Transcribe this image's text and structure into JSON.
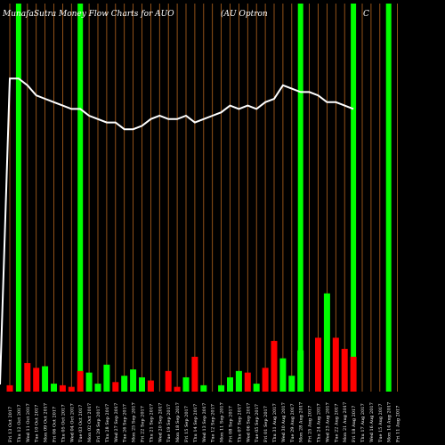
{
  "chart_data": {
    "type": "bar",
    "title": "MunafaSutra  Money Flow  Charts for AUO",
    "subtitle": "(AU Optron",
    "subtitle_tail": "C",
    "colors": {
      "background": "#000000",
      "vertical_lines": "#b5651d",
      "highlight": "#00ff00",
      "up_bar": "#00ff00",
      "down_bar": "#ff0000",
      "price_line": "#ffffff"
    },
    "dates": [
      "Fri 13 Oct 2017",
      "Thu 12 Oct 2017",
      "Wed 11 Oct 2017",
      "Tue 10 Oct 2017",
      "Mon 09 Oct 2017",
      "Fri 06 Oct 2017",
      "Thu 05 Oct 2017",
      "Wed 04 Oct 2017",
      "Tue 03 Oct 2017",
      "Mon 02 Oct 2017",
      "Fri 29 Sep 2017",
      "Thu 28 Sep 2017",
      "Wed 27 Sep 2017",
      "Tue 26 Sep 2017",
      "Mon 25 Sep 2017",
      "Fri 22 Sep 2017",
      "Thu 21 Sep 2017",
      "Wed 20 Sep 2017",
      "Tue 19 Sep 2017",
      "Mon 18 Sep 2017",
      "Fri 15 Sep 2017",
      "Thu 14 Sep 2017",
      "Wed 13 Sep 2017",
      "Tue 12 Sep 2017",
      "Mon 11 Sep 2017",
      "Fri 08 Sep 2017",
      "Thu 07 Sep 2017",
      "Wed 06 Sep 2017",
      "Tue 05 Sep 2017",
      "Fri 01 Sep 2017",
      "Thu 31 Aug 2017",
      "Wed 30 Aug 2017",
      "Tue 29 Aug 2017",
      "Mon 28 Aug 2017",
      "Fri 25 Aug 2017",
      "Thu 24 Aug 2017",
      "Wed 23 Aug 2017",
      "Tue 22 Aug 2017",
      "Mon 21 Aug 2017",
      "Fri 18 Aug 2017",
      "Thu 17 Aug 2017",
      "Wed 16 Aug 2017",
      "Tue 15 Aug 2017",
      "Mon 14 Aug 2017",
      "Fri 11 Aug 2017"
    ],
    "highlighted_dates": [
      "Thu 12 Oct 2017",
      "Tue 03 Oct 2017",
      "Mon 28 Aug 2017",
      "Fri 18 Aug 2017",
      "Mon 14 Aug 2017"
    ],
    "money_flow": [
      {
        "value": 4,
        "direction": "down"
      },
      {
        "value": 0,
        "direction": "none"
      },
      {
        "value": 18,
        "direction": "down"
      },
      {
        "value": 15,
        "direction": "down"
      },
      {
        "value": 16,
        "direction": "up"
      },
      {
        "value": 5,
        "direction": "up"
      },
      {
        "value": 4,
        "direction": "down"
      },
      {
        "value": 3,
        "direction": "down"
      },
      {
        "value": 13,
        "direction": "down"
      },
      {
        "value": 12,
        "direction": "up"
      },
      {
        "value": 5,
        "direction": "up"
      },
      {
        "value": 17,
        "direction": "up"
      },
      {
        "value": 6,
        "direction": "down"
      },
      {
        "value": 10,
        "direction": "up"
      },
      {
        "value": 14,
        "direction": "up"
      },
      {
        "value": 9,
        "direction": "up"
      },
      {
        "value": 7,
        "direction": "down"
      },
      {
        "value": 0,
        "direction": "none"
      },
      {
        "value": 13,
        "direction": "down"
      },
      {
        "value": 3,
        "direction": "down"
      },
      {
        "value": 9,
        "direction": "up"
      },
      {
        "value": 22,
        "direction": "down"
      },
      {
        "value": 4,
        "direction": "up"
      },
      {
        "value": 0,
        "direction": "none"
      },
      {
        "value": 4,
        "direction": "up"
      },
      {
        "value": 9,
        "direction": "up"
      },
      {
        "value": 13,
        "direction": "up"
      },
      {
        "value": 12,
        "direction": "down"
      },
      {
        "value": 5,
        "direction": "up"
      },
      {
        "value": 15,
        "direction": "down"
      },
      {
        "value": 32,
        "direction": "down"
      },
      {
        "value": 21,
        "direction": "up"
      },
      {
        "value": 10,
        "direction": "up"
      },
      {
        "value": 26,
        "direction": "up"
      },
      {
        "value": 0,
        "direction": "none"
      },
      {
        "value": 34,
        "direction": "down"
      },
      {
        "value": 62,
        "direction": "up"
      },
      {
        "value": 34,
        "direction": "down"
      },
      {
        "value": 27,
        "direction": "down"
      },
      {
        "value": 22,
        "direction": "down"
      },
      {
        "value": 0,
        "direction": "none"
      },
      {
        "value": 0,
        "direction": "none"
      },
      {
        "value": 0,
        "direction": "none"
      },
      {
        "value": 0,
        "direction": "none"
      },
      {
        "value": 0,
        "direction": "none"
      }
    ],
    "price": [
      81,
      81,
      79,
      76,
      75,
      74,
      73,
      72,
      72,
      70,
      69,
      68,
      68,
      66,
      66,
      67,
      69,
      70,
      69,
      69,
      70,
      68,
      69,
      70,
      71,
      73,
      72,
      73,
      72,
      74,
      75,
      79,
      78,
      77,
      77,
      76,
      74,
      74,
      73,
      72,
      0,
      0,
      0,
      0,
      0
    ]
  }
}
